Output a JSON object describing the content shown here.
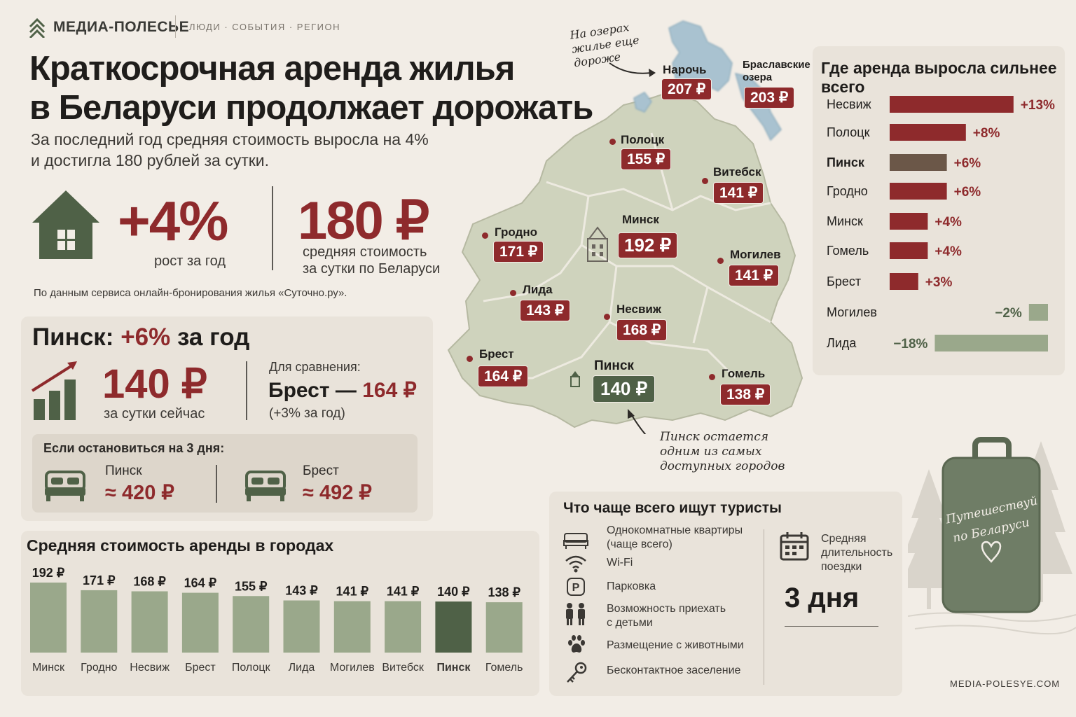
{
  "header": {
    "brand": "МЕДИА-ПОЛЕСЬЕ",
    "nav": "ЛЮДИ · СОБЫТИЯ · РЕГИОН",
    "title_line1": "Краткосрочная аренда жилья",
    "title_line2": "в Беларуси продолжает дорожать",
    "subtitle_line1": "За последний год средняя стоимость выросла на 4%",
    "subtitle_line2": "и достигла 180 рублей за сутки."
  },
  "kpi": {
    "growth": "+4%",
    "growth_label": "рост за год",
    "price": "180 ₽",
    "price_label_line1": "средняя стоимость",
    "price_label_line2": "за сутки по Беларуси",
    "source": "По данным сервиса онлайн-бронирования жилья «Суточно.ру»."
  },
  "pinsk": {
    "title_city": "Пинск:",
    "title_growth": "+6%",
    "title_rest": "за год",
    "price": "140 ₽",
    "price_label": "за сутки сейчас",
    "compare_label": "Для сравнения:",
    "compare_city": "Брест — ",
    "compare_price": "164 ₽",
    "compare_sub": "(+3% за год)",
    "stay_title": "Если остановиться на 3 дня:",
    "stay": [
      {
        "city": "Пинск",
        "value": "≈ 420 ₽"
      },
      {
        "city": "Брест",
        "value": "≈ 492 ₽"
      }
    ]
  },
  "map": {
    "cities": [
      {
        "name": "Нарочь",
        "price": "207 ₽"
      },
      {
        "name": "Браславские",
        "name2": "озера",
        "price": "203 ₽"
      },
      {
        "name": "Полоцк",
        "price": "155 ₽"
      },
      {
        "name": "Витебск",
        "price": "141 ₽"
      },
      {
        "name": "Гродно",
        "price": "171 ₽"
      },
      {
        "name": "Минск",
        "price": "192 ₽"
      },
      {
        "name": "Могилев",
        "price": "141 ₽"
      },
      {
        "name": "Лида",
        "price": "143 ₽"
      },
      {
        "name": "Несвиж",
        "price": "168 ₽"
      },
      {
        "name": "Брест",
        "price": "164 ₽"
      },
      {
        "name": "Пинск",
        "price": "140 ₽"
      },
      {
        "name": "Гомель",
        "price": "138 ₽"
      }
    ],
    "note_lakes": [
      "На озерах",
      "жилье еще",
      "дороже"
    ],
    "note_pinsk": [
      "Пинск остается",
      "одним из самых",
      "доступных городов"
    ]
  },
  "colors": {
    "accent_red": "#8e2a2c",
    "green_dark": "#4f6147",
    "green_light": "#9aa88b",
    "background": "#f2ede6",
    "pinsk_growth_bar": "#6b5748"
  },
  "suitcase": {
    "text_line1": "Путешествуй",
    "text_line2": "по Беларуси"
  },
  "tourists": {
    "title": "Что чаще всего ищут туристы",
    "items": [
      {
        "icon": "bed-icon",
        "line1": "Однокомнатные квартиры",
        "line2": "(чаще всего)"
      },
      {
        "icon": "wifi-icon",
        "line1": "Wi-Fi",
        "line2": ""
      },
      {
        "icon": "parking-icon",
        "line1": "Парковка",
        "line2": ""
      },
      {
        "icon": "family-icon",
        "line1": "Возможность приехать",
        "line2": "с детьми"
      },
      {
        "icon": "paw-icon",
        "line1": "Размещение с животными",
        "line2": ""
      },
      {
        "icon": "key-icon",
        "line1": "Бесконтактное заселение",
        "line2": ""
      }
    ],
    "duration_label": [
      "Средняя",
      "длительность",
      "поездки"
    ],
    "duration_value": "3 дня"
  },
  "site": "MEDIA-POLESYE.COM",
  "chart_data": [
    {
      "type": "bar",
      "title": "Средняя стоимость аренды в городах",
      "categories": [
        "Минск",
        "Гродно",
        "Несвиж",
        "Брест",
        "Полоцк",
        "Лида",
        "Могилев",
        "Витебск",
        "Пинск",
        "Гомель"
      ],
      "values": [
        192,
        171,
        168,
        164,
        155,
        143,
        141,
        141,
        140,
        138
      ],
      "value_labels": [
        "192 ₽",
        "171 ₽",
        "168 ₽",
        "164 ₽",
        "155 ₽",
        "143 ₽",
        "141 ₽",
        "141 ₽",
        "140 ₽",
        "138 ₽"
      ],
      "highlight": "Пинск",
      "unit": "₽"
    },
    {
      "type": "bar",
      "orientation": "horizontal",
      "title": "Где аренда выросла сильнее всего",
      "categories": [
        "Несвиж",
        "Полоцк",
        "Пинск",
        "Гродно",
        "Минск",
        "Гомель",
        "Брест",
        "Могилев",
        "Лида"
      ],
      "values": [
        13,
        8,
        6,
        6,
        4,
        4,
        3,
        -2,
        -18
      ],
      "value_labels": [
        "+13%",
        "+8%",
        "+6%",
        "+6%",
        "+4%",
        "+4%",
        "+3%",
        "−2%",
        "−18%"
      ],
      "highlight": "Пинск",
      "unit": "%"
    }
  ]
}
